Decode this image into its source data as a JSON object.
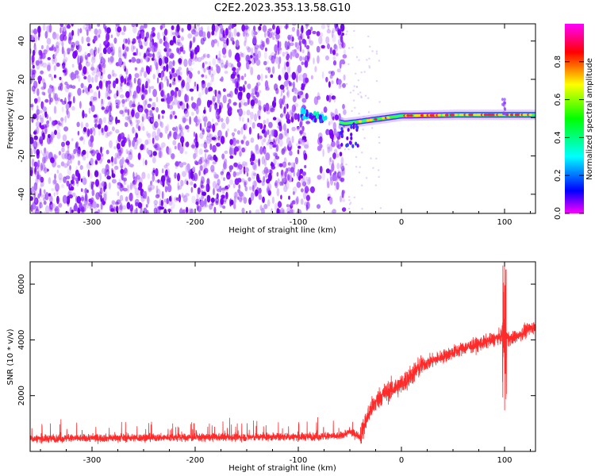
{
  "title": "C2E2.2023.353.13.58.G10",
  "chart_data": [
    {
      "type": "heatmap",
      "xlabel": "Height of straight line (km)",
      "ylabel": "Frequency (Hz)",
      "xlim": [
        -360,
        130
      ],
      "ylim": [
        -50,
        49
      ],
      "xticks": [
        -300,
        -200,
        -100,
        0,
        100
      ],
      "yticks": [
        -40,
        -20,
        0,
        20,
        40
      ],
      "grid": false,
      "colorbar": {
        "label": "Normalized spectral amplitude",
        "range": [
          0,
          1
        ],
        "ticks": [
          "0.0",
          "0.2",
          "0.4",
          "0.6",
          "0.8"
        ],
        "colormap": [
          "#ff00ff",
          "#0000ff",
          "#00ffff",
          "#00ff00",
          "#ffff00",
          "#ff0000",
          "#ff00ff"
        ]
      },
      "features": {
        "noise_region_km": [
          -360,
          -55
        ],
        "signal_line": [
          {
            "x": -95,
            "y": 2
          },
          {
            "x": -55,
            "y": -3
          },
          {
            "x": -40,
            "y": -2
          },
          {
            "x": 0,
            "y": 1
          },
          {
            "x": 60,
            "y": 1.5
          },
          {
            "x": 100,
            "y": 1.5
          },
          {
            "x": 130,
            "y": 1.5
          }
        ]
      }
    },
    {
      "type": "line",
      "xlabel": "Height of straight line (km)",
      "ylabel": "SNR (10 * v/v)",
      "xlim": [
        -360,
        130
      ],
      "ylim": [
        0,
        6800
      ],
      "xticks": [
        -300,
        -200,
        -100,
        0,
        100
      ],
      "yticks": [
        2000,
        4000,
        6000
      ],
      "grid": false,
      "color": "#ff2a2a",
      "x": [
        -360,
        -300,
        -200,
        -100,
        -60,
        -50,
        -40,
        -30,
        -20,
        0,
        20,
        40,
        60,
        80,
        95,
        100,
        105,
        110,
        130
      ],
      "y": [
        450,
        480,
        500,
        520,
        550,
        700,
        550,
        1500,
        2000,
        2400,
        3100,
        3400,
        3700,
        3900,
        4100,
        4200,
        4000,
        4100,
        4500
      ]
    }
  ]
}
